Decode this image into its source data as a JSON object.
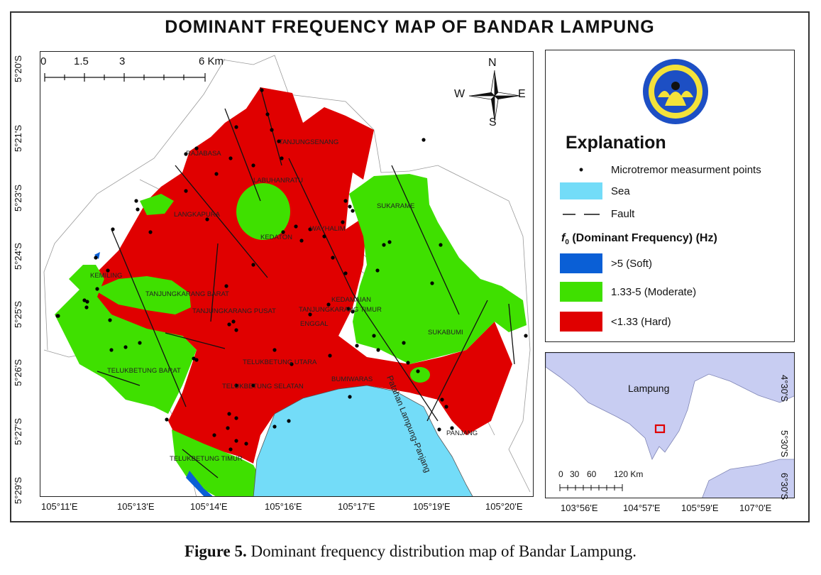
{
  "title": "DOMINANT FREQUENCY MAP OF BANDAR LAMPUNG",
  "caption": {
    "label": "Figure 5.",
    "text": " Dominant frequency distribution map of Bandar Lampung."
  },
  "latitude_labels": [
    "5°20'S",
    "5°21'S",
    "5°23'S",
    "5°24'S",
    "5°25'S",
    "5°26'S",
    "5°27'S",
    "5°29'S"
  ],
  "longitude_labels": [
    "105°11'E",
    "105°13'E",
    "105°14'E",
    "105°16'E",
    "105°17'E",
    "105°19'E",
    "105°20'E"
  ],
  "scale_bar": {
    "labels": [
      "0",
      "1.5",
      "3",
      "6 Km"
    ]
  },
  "compass": {
    "n": "N",
    "s": "S",
    "e": "E",
    "w": "W"
  },
  "regions": [
    "TANJUNGSENANG",
    "RAJABASA",
    "LABUHANRATU",
    "LANGKAPURA",
    "KEDATON",
    "WAYHALIM",
    "SUKARAME",
    "KEMILING",
    "TANJUNGKARANG BARAT",
    "TANJUNGKARANG PUSAT",
    "TANJUNGKARANG TIMUR",
    "KEDAMAIAN",
    "ENGGAL",
    "SUKABUMI",
    "TELUKBETUNG UTARA",
    "TELUKBETUNG BARAT",
    "TELUKBETUNG SELATAN",
    "BUMIWARAS",
    "TELUKBETUNG TIMUR",
    "PANJANG"
  ],
  "fault_label": "Patahan Lampung-Panjang",
  "legend": {
    "heading": "Explanation",
    "points_label": "Microtremor measurment points",
    "sea_label": "Sea",
    "fault_label": "Fault",
    "frequency_heading": "(Dominant Frequency) (Hz)",
    "frequency_symbol": "f",
    "frequency_subscript": "0",
    "classes": [
      {
        "label": ">5 (Soft)",
        "color": "#0a5fd6"
      },
      {
        "label": "1.33-5  (Moderate)",
        "color": "#3fe000"
      },
      {
        "label": "<1.33  (Hard)",
        "color": "#e00000"
      }
    ],
    "sea_color": "#73dcf8"
  },
  "inset": {
    "province_label": "Lampung",
    "scale_labels": [
      "0",
      "30",
      "60",
      "120 Km"
    ],
    "lat_labels": [
      "4°30'S",
      "5°30'S",
      "6°30'S"
    ],
    "lon_labels": [
      "103°56'E",
      "104°57'E",
      "105°59'E",
      "107°0'E"
    ],
    "land_color": "#c8cdf2"
  }
}
